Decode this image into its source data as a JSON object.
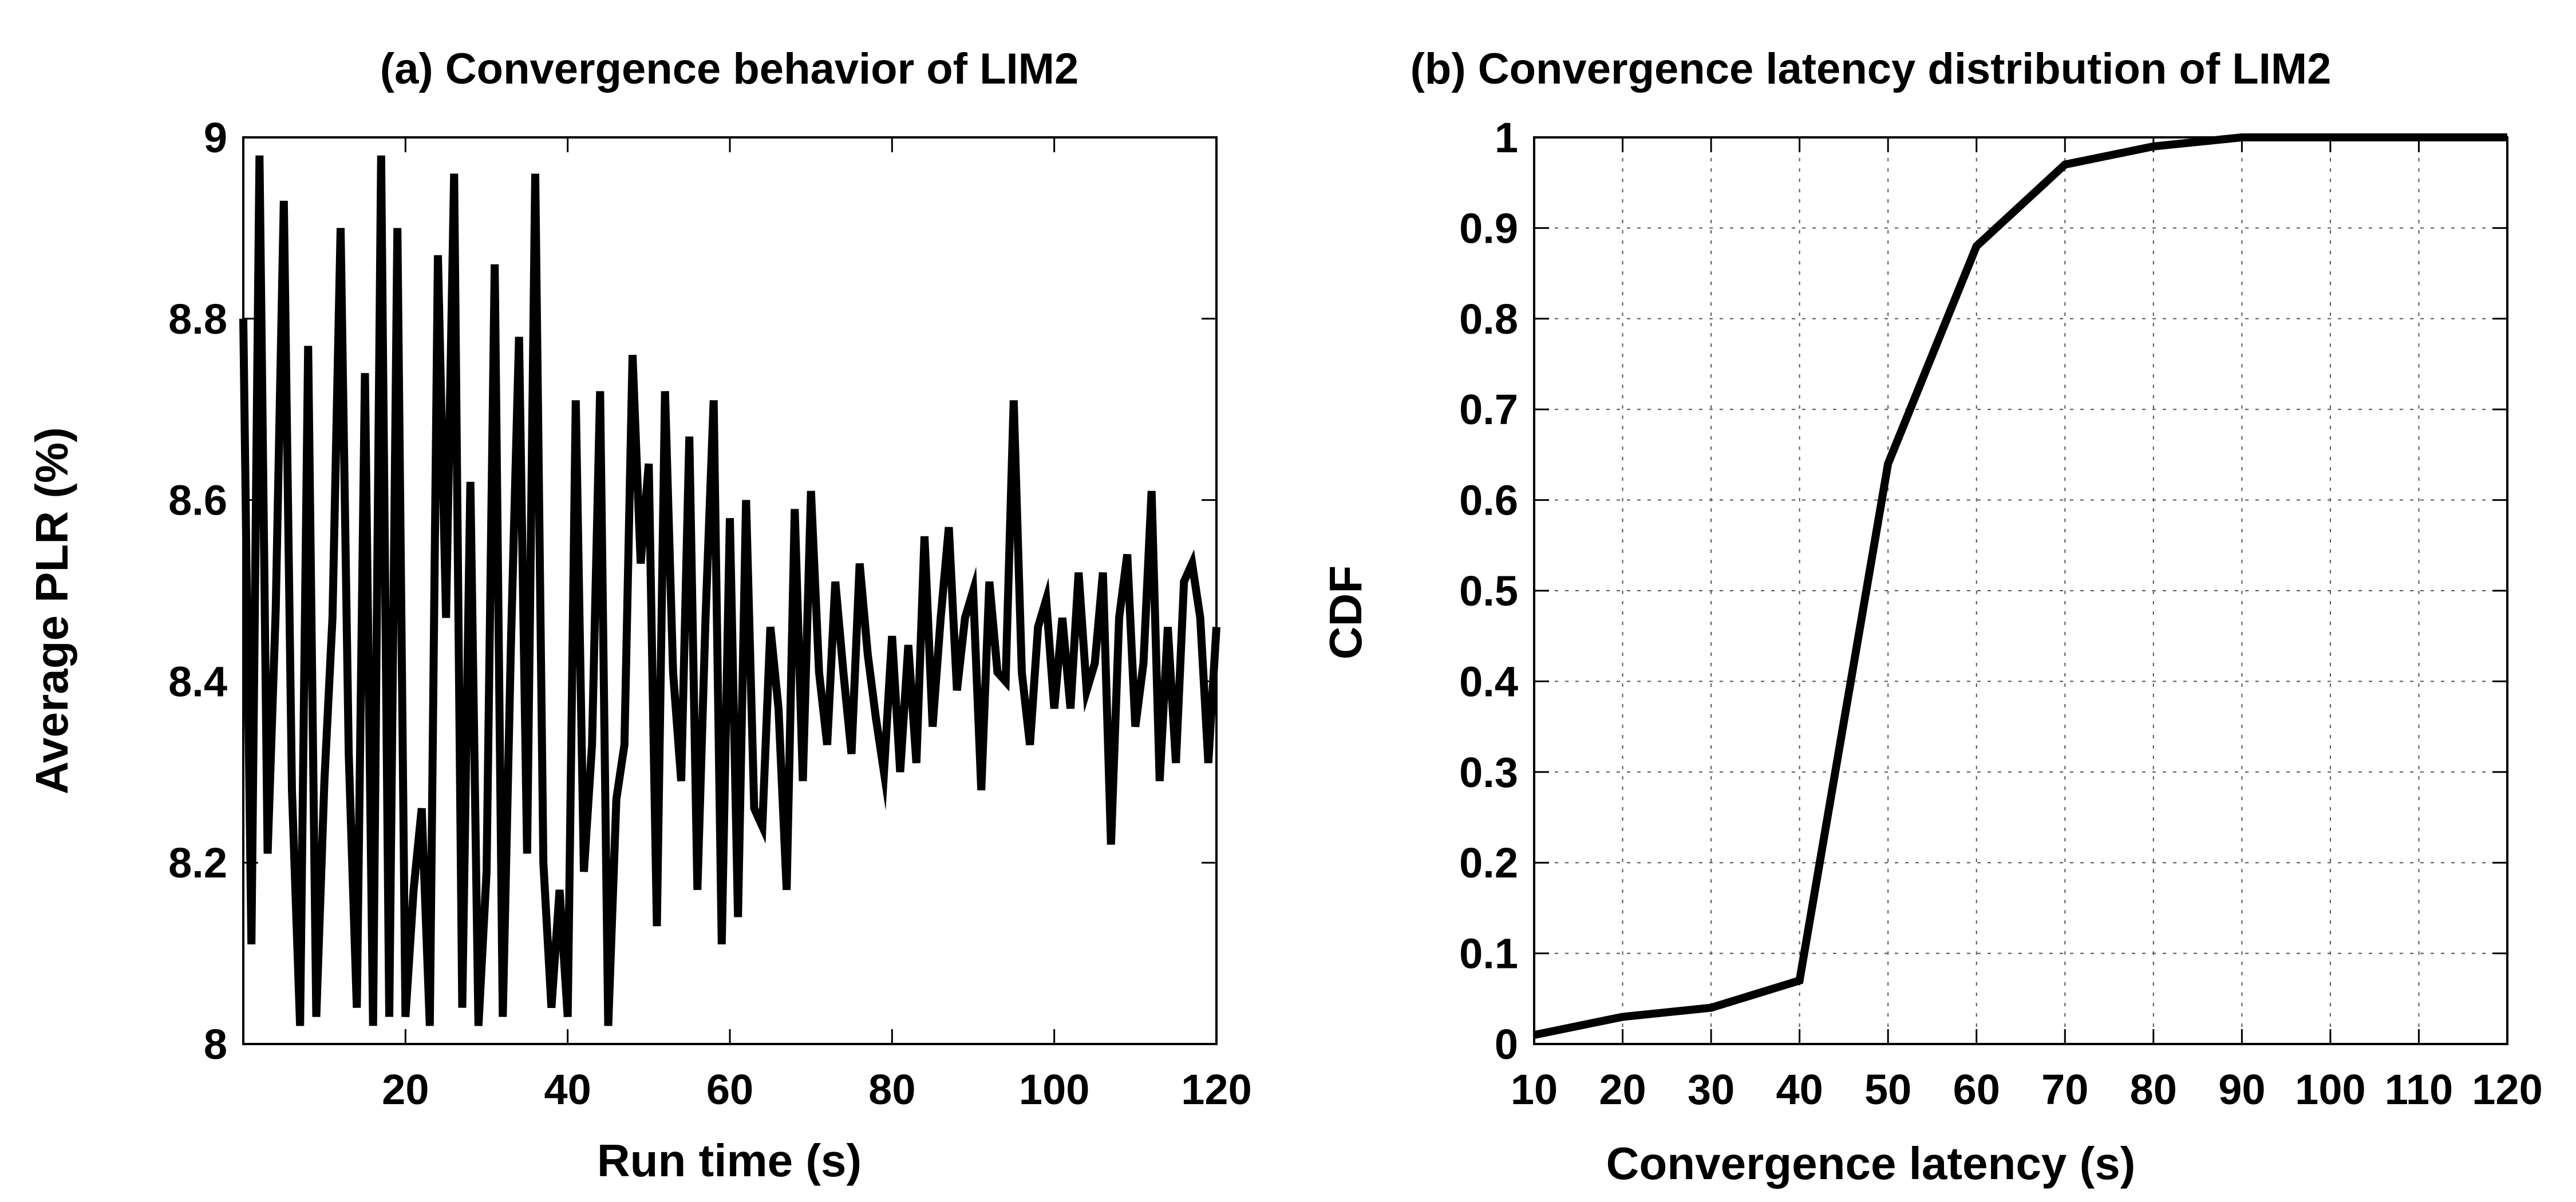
{
  "chart_data": [
    {
      "type": "line",
      "title": "(a) Convergence behavior of LIM2",
      "xlabel": "Run time (s)",
      "ylabel": "Average PLR (%)",
      "xlim": [
        0,
        120
      ],
      "ylim": [
        8,
        9
      ],
      "xticks": [
        20,
        40,
        60,
        80,
        100,
        120
      ],
      "yticks": [
        8,
        8.2,
        8.4,
        8.6,
        8.8,
        9
      ],
      "yticklabels": [
        "8",
        "8.2",
        "8.4",
        "8.6",
        "8.8",
        "9"
      ],
      "grid": false,
      "series": [
        {
          "name": "LIM2",
          "x": [
            0,
            1,
            2,
            3,
            4,
            5,
            6,
            7,
            8,
            9,
            10,
            11,
            12,
            13,
            14,
            15,
            16,
            17,
            18,
            19,
            20,
            21,
            22,
            23,
            24,
            25,
            26,
            27,
            28,
            29,
            30,
            31,
            32,
            33,
            34,
            35,
            36,
            37,
            38,
            39,
            40,
            41,
            42,
            43,
            44,
            45,
            46,
            47,
            48,
            49,
            50,
            51,
            52,
            53,
            54,
            55,
            56,
            57,
            58,
            59,
            60,
            61,
            62,
            63,
            64,
            65,
            66,
            67,
            68,
            69,
            70,
            71,
            72,
            73,
            74,
            75,
            76,
            77,
            78,
            79,
            80,
            81,
            82,
            83,
            84,
            85,
            86,
            87,
            88,
            89,
            90,
            91,
            92,
            93,
            94,
            95,
            96,
            97,
            98,
            99,
            100,
            101,
            102,
            103,
            104,
            105,
            106,
            107,
            108,
            109,
            110,
            111,
            112,
            113,
            114,
            115,
            116,
            117,
            118,
            119,
            120
          ],
          "values": [
            8.8,
            8.11,
            8.98,
            8.21,
            8.48,
            8.93,
            8.28,
            8.02,
            8.77,
            8.03,
            8.29,
            8.47,
            8.9,
            8.32,
            8.04,
            8.74,
            8.02,
            8.98,
            8.03,
            8.9,
            8.03,
            8.17,
            8.26,
            8.02,
            8.87,
            8.47,
            8.96,
            8.04,
            8.62,
            8.02,
            8.19,
            8.86,
            8.03,
            8.44,
            8.78,
            8.21,
            8.96,
            8.2,
            8.04,
            8.17,
            8.03,
            8.71,
            8.19,
            8.33,
            8.72,
            8.02,
            8.27,
            8.33,
            8.76,
            8.53,
            8.64,
            8.13,
            8.72,
            8.41,
            8.29,
            8.67,
            8.17,
            8.47,
            8.71,
            8.11,
            8.58,
            8.14,
            8.6,
            8.26,
            8.24,
            8.46,
            8.37,
            8.17,
            8.59,
            8.29,
            8.61,
            8.41,
            8.33,
            8.51,
            8.41,
            8.32,
            8.53,
            8.43,
            8.36,
            8.3,
            8.45,
            8.3,
            8.44,
            8.31,
            8.56,
            8.35,
            8.47,
            8.57,
            8.39,
            8.47,
            8.5,
            8.28,
            8.51,
            8.41,
            8.4,
            8.71,
            8.41,
            8.33,
            8.46,
            8.49,
            8.37,
            8.47,
            8.37,
            8.52,
            8.39,
            8.42,
            8.52,
            8.22,
            8.47,
            8.54,
            8.35,
            8.42,
            8.61,
            8.29,
            8.46,
            8.31,
            8.51,
            8.53,
            8.47,
            8.31,
            8.46
          ]
        }
      ]
    },
    {
      "type": "line",
      "title": "(b) Convergence latency distribution of LIM2",
      "xlabel": "Convergence latency (s)",
      "ylabel": "CDF",
      "xlim": [
        10,
        120
      ],
      "ylim": [
        0,
        1
      ],
      "xticks": [
        10,
        20,
        30,
        40,
        50,
        60,
        70,
        80,
        90,
        100,
        110,
        120
      ],
      "yticks": [
        0,
        0.1,
        0.2,
        0.3,
        0.4,
        0.5,
        0.6,
        0.7,
        0.8,
        0.9,
        1
      ],
      "yticklabels": [
        "0",
        "0.1",
        "0.2",
        "0.3",
        "0.4",
        "0.5",
        "0.6",
        "0.7",
        "0.8",
        "0.9",
        "1"
      ],
      "grid": true,
      "series": [
        {
          "name": "CDF",
          "x": [
            10,
            20,
            30,
            40,
            50,
            60,
            70,
            80,
            90,
            100,
            110,
            120
          ],
          "values": [
            0.01,
            0.03,
            0.04,
            0.07,
            0.64,
            0.88,
            0.97,
            0.99,
            1.0,
            1.0,
            1.0,
            1.0
          ]
        }
      ]
    }
  ]
}
